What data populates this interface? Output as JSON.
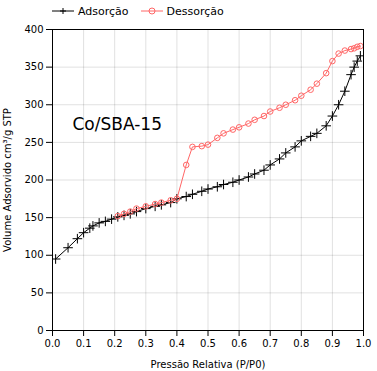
{
  "chart_data": {
    "type": "line",
    "title": "Co/SBA-15",
    "x_label": "Pressão Relativa (P/P0)",
    "y_label": "Volume Adsorvido cm³/g STP",
    "xlim": [
      0.0,
      1.0
    ],
    "ylim": [
      0,
      400
    ],
    "xticks": [
      {
        "value": 0.0,
        "label": "0.0"
      },
      0.1,
      0.2,
      0.3,
      0.4,
      0.5,
      0.6,
      0.7,
      0.8,
      0.9,
      {
        "value": 1.0,
        "label": "1.0"
      }
    ],
    "yticks": [
      0,
      50,
      100,
      150,
      200,
      250,
      300,
      350,
      400
    ],
    "grid": true,
    "legend": "upper left",
    "series": [
      {
        "name": "Adsorção",
        "color": "#000000",
        "marker": "plus",
        "x": [
          0.01,
          0.05,
          0.08,
          0.1,
          0.12,
          0.13,
          0.15,
          0.17,
          0.19,
          0.21,
          0.23,
          0.25,
          0.27,
          0.3,
          0.33,
          0.35,
          0.38,
          0.4,
          0.43,
          0.45,
          0.48,
          0.5,
          0.53,
          0.55,
          0.58,
          0.6,
          0.63,
          0.65,
          0.68,
          0.7,
          0.73,
          0.75,
          0.78,
          0.8,
          0.83,
          0.85,
          0.88,
          0.9,
          0.92,
          0.94,
          0.96,
          0.97,
          0.98,
          0.99
        ],
        "values": [
          95,
          110,
          122,
          130,
          136,
          139,
          143,
          145,
          148,
          151,
          153,
          155,
          158,
          162,
          165,
          167,
          170,
          175,
          178,
          181,
          185,
          188,
          191,
          194,
          197,
          200,
          204,
          208,
          213,
          220,
          228,
          236,
          244,
          252,
          258,
          262,
          272,
          285,
          300,
          318,
          340,
          350,
          358,
          365
        ]
      },
      {
        "name": "Dessorção",
        "color": "#ff6666",
        "marker": "circle",
        "x": [
          0.21,
          0.23,
          0.25,
          0.27,
          0.3,
          0.33,
          0.35,
          0.38,
          0.4,
          0.43,
          0.45,
          0.48,
          0.5,
          0.53,
          0.55,
          0.58,
          0.6,
          0.63,
          0.65,
          0.68,
          0.7,
          0.73,
          0.75,
          0.78,
          0.8,
          0.83,
          0.85,
          0.88,
          0.9,
          0.92,
          0.94,
          0.96,
          0.97,
          0.98,
          0.99
        ],
        "values": [
          152,
          155,
          158,
          162,
          165,
          168,
          170,
          173,
          175,
          220,
          244,
          245,
          247,
          256,
          262,
          267,
          270,
          275,
          280,
          285,
          291,
          296,
          300,
          306,
          312,
          320,
          328,
          342,
          358,
          368,
          372,
          374,
          375,
          377,
          378
        ]
      }
    ]
  }
}
